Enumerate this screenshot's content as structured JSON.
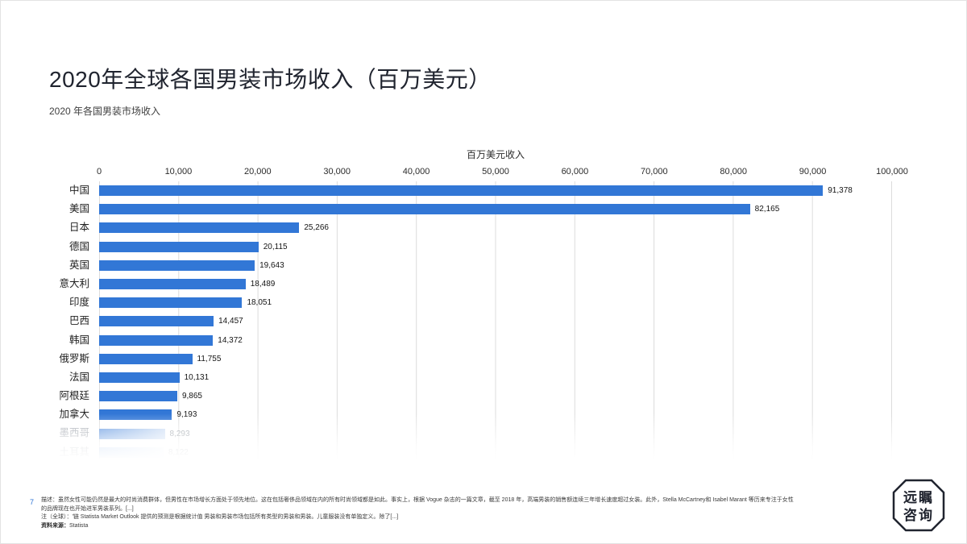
{
  "slide": {
    "title": "2020年全球各国男装市场收入（百万美元）",
    "subtitle": "2020 年各国男装市场收入",
    "page_number": "7",
    "logo": {
      "line1": "远瞩",
      "line2": "咨询"
    }
  },
  "footnotes": {
    "description": "描述：虽然女性可能仍然是最大的时尚消费群体，但男性在市场增长方面处于领先地位。这在包括奢侈品领域在内的所有时尚领域都是如此。事实上，根据 Vogue 杂志的一篇文章，截至 2018 年，高端男装的销售额连续三年增长速度超过女装。此外，Stella McCartney和 Isabel Marant 等历来专注于女性的品牌现在也开始进军男装系列。[...]",
    "note": "注（全球）：'链 Statista Market Outlook 提供的预测是根据统计值 男装和男装市场包括所有类型的男装和男装。儿童服装没有单独定义。除了[...]",
    "source_label": "资料来源：",
    "source": "Statista"
  },
  "chart_data": {
    "type": "bar",
    "orientation": "horizontal",
    "xlabel": "百万美元收入",
    "xlim": [
      0,
      100000
    ],
    "grid": true,
    "bar_color": "#3277d6",
    "x_ticks": [
      "0",
      "10,000",
      "20,000",
      "30,000",
      "40,000",
      "50,000",
      "60,000",
      "70,000",
      "80,000",
      "90,000",
      "100,000"
    ],
    "categories": [
      "中国",
      "美国",
      "日本",
      "德国",
      "英国",
      "意大利",
      "印度",
      "巴西",
      "韩国",
      "俄罗斯",
      "法国",
      "阿根廷",
      "加拿大",
      "墨西哥",
      "土耳其"
    ],
    "values": [
      91378,
      82165,
      25266,
      20115,
      19643,
      18489,
      18051,
      14457,
      14372,
      11755,
      10131,
      9865,
      9193,
      8293,
      8122
    ],
    "value_labels": [
      "91,378",
      "82,165",
      "25,266",
      "20,115",
      "19,643",
      "18,489",
      "18,051",
      "14,457",
      "14,372",
      "11,755",
      "10,131",
      "9,865",
      "9,193",
      "8,293",
      "8,122"
    ],
    "fade_levels": [
      0,
      0,
      0,
      0,
      0,
      0,
      0,
      0,
      0,
      0,
      0,
      0,
      0,
      1,
      2
    ]
  }
}
